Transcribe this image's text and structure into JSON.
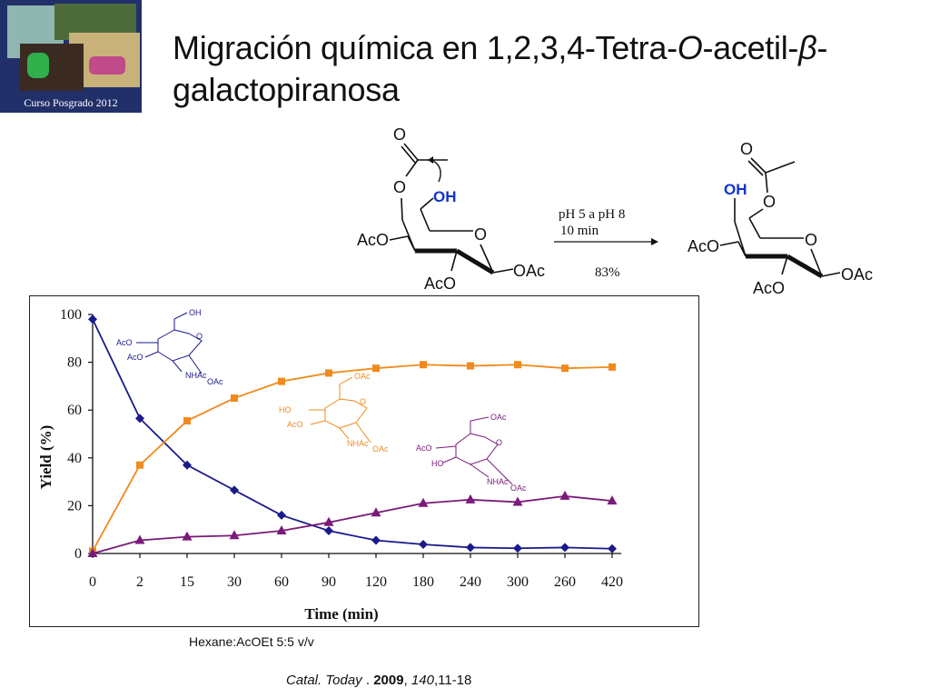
{
  "logo": {
    "caption": "Curso Posgrado 2012"
  },
  "title": {
    "part1": "Migración química en 1,2,3,4-Tetra-",
    "italic_o": "O",
    "part2": "-acetil-",
    "italic_beta": "β",
    "part3": "-galactopiranosa"
  },
  "scheme": {
    "reactant": {
      "oh": "OH",
      "o6": "O",
      "carbonyl_o": "O",
      "ring_o": "O",
      "aco_left": "AcO",
      "aco_bottom": "AcO",
      "oac_right": "OAc"
    },
    "conditions": {
      "line1": "pH 5 a pH 8",
      "line2": "10 min",
      "yield": "83%"
    },
    "product": {
      "oh": "OH",
      "o6": "O",
      "carbonyl_o": "O",
      "ring_o": "O",
      "aco_left": "AcO",
      "aco_bottom": "AcO",
      "oac_right": "OAc"
    }
  },
  "chart_data": {
    "type": "line",
    "xlabel": "Time (min)",
    "ylabel": "Yield (%)",
    "categories": [
      "0",
      "2",
      "15",
      "30",
      "60",
      "90",
      "120",
      "180",
      "240",
      "300",
      "260",
      "420"
    ],
    "ylim": [
      0,
      100
    ],
    "yticks": [
      "0",
      "20",
      "40",
      "60",
      "80",
      "100"
    ],
    "grid": false,
    "series": [
      {
        "color": "#1a1a8c",
        "marker": "diamond",
        "values": [
          98,
          56.5,
          37,
          26.5,
          16,
          9.5,
          5.5,
          3.8,
          2.5,
          2.2,
          2.5,
          2
        ]
      },
      {
        "color": "#f08a1c",
        "marker": "square",
        "values": [
          1,
          37,
          55.5,
          65,
          72,
          75.5,
          77.5,
          79,
          78.5,
          79,
          77.5,
          78
        ]
      },
      {
        "color": "#7a1a7a",
        "marker": "triangle",
        "values": [
          0,
          5.5,
          7,
          7.5,
          9.5,
          13,
          17,
          21,
          22.5,
          21.5,
          24,
          22
        ]
      }
    ],
    "structures": {
      "blue": {
        "oh": "OH",
        "o": "O",
        "aco1": "AcO",
        "aco2": "AcO",
        "nhac": "NHAc",
        "oac": "OAc"
      },
      "orange": {
        "oac6": "OAc",
        "o": "O",
        "ho": "HO",
        "aco": "AcO",
        "nhac": "NHAc",
        "oac": "OAc"
      },
      "purple": {
        "oac6": "OAc",
        "o": "O",
        "aco": "AcO",
        "ho": "HO",
        "nhac": "NHAc",
        "oac": "OAc"
      }
    }
  },
  "footer": {
    "solvent": "Hexane:AcOEt 5:5 v/v",
    "ref_journal": "Catal. Today",
    "ref_sep": " . ",
    "ref_year": "2009",
    "ref_comma": ", ",
    "ref_volume": "140",
    "ref_pages": ",11-18"
  }
}
